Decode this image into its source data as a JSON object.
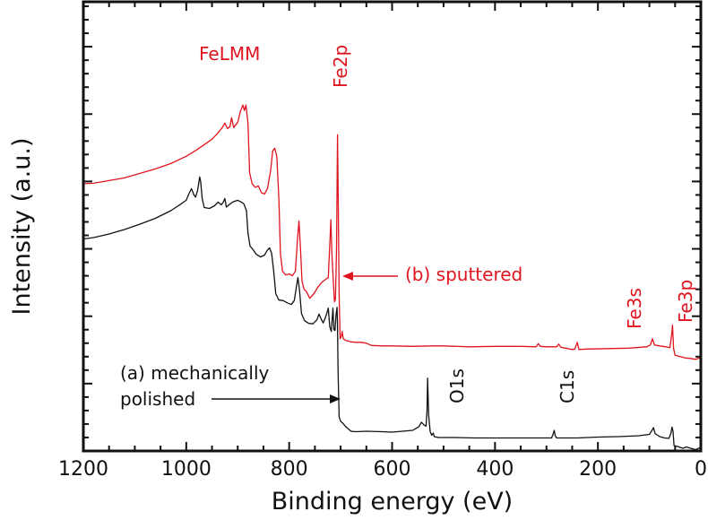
{
  "chart_data": {
    "type": "line",
    "title": "",
    "xlabel": "Binding energy (eV)",
    "ylabel": "Intensity (a.u.)",
    "xlim": [
      1200,
      0
    ],
    "x_reversed": true,
    "ylim": [
      0,
      100
    ],
    "x_major_ticks": [
      1200,
      1000,
      800,
      600,
      400,
      200,
      0
    ],
    "x_tick_labels": [
      "1200",
      "1000",
      "800",
      "600",
      "400",
      "200",
      "0"
    ],
    "x_minor_step": 50,
    "y_minor_step": 3,
    "y_major_every": 5,
    "y_tick_labels_shown": false,
    "grid": false,
    "colors": {
      "sputtered": "#e0141e",
      "polished": "#111111",
      "axis": "#111111"
    },
    "series": [
      {
        "name": "(b) sputtered",
        "color": "#e0141e",
        "points": [
          [
            1200,
            59.5
          ],
          [
            1180,
            59.6
          ],
          [
            1150,
            60.2
          ],
          [
            1120,
            60.8
          ],
          [
            1090,
            61.8
          ],
          [
            1060,
            62.8
          ],
          [
            1030,
            64.0
          ],
          [
            1000,
            65.6
          ],
          [
            980,
            67.0
          ],
          [
            960,
            68.6
          ],
          [
            950,
            69.4
          ],
          [
            940,
            70.6
          ],
          [
            930,
            72.0
          ],
          [
            925,
            73.0
          ],
          [
            920,
            71.8
          ],
          [
            915,
            72.2
          ],
          [
            912,
            74.2
          ],
          [
            908,
            72.0
          ],
          [
            900,
            73.2
          ],
          [
            895,
            75.5
          ],
          [
            890,
            77.0
          ],
          [
            887,
            75.8
          ],
          [
            884,
            77.0
          ],
          [
            880,
            73.0
          ],
          [
            877,
            62.0
          ],
          [
            872,
            59.5
          ],
          [
            866,
            58.7
          ],
          [
            860,
            59.0
          ],
          [
            854,
            57.5
          ],
          [
            848,
            57.2
          ],
          [
            842,
            58.5
          ],
          [
            836,
            62.5
          ],
          [
            832,
            66.8
          ],
          [
            828,
            67.4
          ],
          [
            824,
            65.5
          ],
          [
            820,
            56.0
          ],
          [
            817,
            44.0
          ],
          [
            813,
            40.0
          ],
          [
            807,
            39.2
          ],
          [
            800,
            39.4
          ],
          [
            794,
            39.0
          ],
          [
            788,
            40.0
          ],
          [
            784,
            47.0
          ],
          [
            781,
            51.2
          ],
          [
            778,
            45.0
          ],
          [
            775,
            37.8
          ],
          [
            771,
            36.0
          ],
          [
            766,
            35.4
          ],
          [
            760,
            34.0
          ],
          [
            752,
            35.0
          ],
          [
            744,
            36.5
          ],
          [
            736,
            37.6
          ],
          [
            728,
            38.3
          ],
          [
            724,
            38.6
          ],
          [
            721,
            46.0
          ],
          [
            719,
            51.5
          ],
          [
            717,
            44.0
          ],
          [
            714,
            37.5
          ],
          [
            712,
            33.2
          ],
          [
            710,
            33.8
          ],
          [
            708,
            45.0
          ],
          [
            706,
            70.4
          ],
          [
            705,
            60.0
          ],
          [
            703,
            35.0
          ],
          [
            701,
            25.0
          ],
          [
            699,
            25.4
          ],
          [
            697,
            26.6
          ],
          [
            695,
            25.0
          ],
          [
            690,
            24.6
          ],
          [
            680,
            24.3
          ],
          [
            670,
            24.2
          ],
          [
            660,
            24.2
          ],
          [
            650,
            24.0
          ],
          [
            640,
            23.5
          ],
          [
            620,
            23.4
          ],
          [
            600,
            23.4
          ],
          [
            560,
            23.3
          ],
          [
            520,
            23.4
          ],
          [
            500,
            23.4
          ],
          [
            450,
            23.2
          ],
          [
            400,
            23.3
          ],
          [
            350,
            23.3
          ],
          [
            320,
            23.2
          ],
          [
            316,
            23.9
          ],
          [
            312,
            23.3
          ],
          [
            300,
            23.2
          ],
          [
            280,
            23.2
          ],
          [
            276,
            23.8
          ],
          [
            272,
            23.1
          ],
          [
            250,
            22.6
          ],
          [
            245,
            22.7
          ],
          [
            240,
            24.2
          ],
          [
            237,
            22.6
          ],
          [
            220,
            22.7
          ],
          [
            180,
            22.8
          ],
          [
            140,
            22.9
          ],
          [
            105,
            23.2
          ],
          [
            98,
            23.6
          ],
          [
            94,
            25.0
          ],
          [
            90,
            23.6
          ],
          [
            80,
            23.4
          ],
          [
            68,
            23.2
          ],
          [
            60,
            23.0
          ],
          [
            56,
            26.5
          ],
          [
            55,
            28.0
          ],
          [
            53,
            22.8
          ],
          [
            50,
            21.3
          ],
          [
            40,
            21.0
          ],
          [
            30,
            20.7
          ],
          [
            20,
            20.6
          ],
          [
            10,
            20.4
          ],
          [
            0,
            20.8
          ]
        ]
      },
      {
        "name": "(a) mechanically polished",
        "color": "#111111",
        "points": [
          [
            1200,
            47.2
          ],
          [
            1180,
            47.5
          ],
          [
            1150,
            48.3
          ],
          [
            1120,
            49.3
          ],
          [
            1090,
            50.5
          ],
          [
            1060,
            51.8
          ],
          [
            1030,
            53.5
          ],
          [
            1010,
            55.0
          ],
          [
            1000,
            55.8
          ],
          [
            995,
            57.2
          ],
          [
            990,
            58.4
          ],
          [
            985,
            57.0
          ],
          [
            982,
            56.5
          ],
          [
            978,
            58.0
          ],
          [
            974,
            61.0
          ],
          [
            972,
            60.0
          ],
          [
            969,
            56.2
          ],
          [
            965,
            54.2
          ],
          [
            955,
            54.0
          ],
          [
            945,
            54.6
          ],
          [
            938,
            55.4
          ],
          [
            932,
            54.8
          ],
          [
            928,
            55.4
          ],
          [
            925,
            56.2
          ],
          [
            922,
            54.3
          ],
          [
            918,
            54.7
          ],
          [
            910,
            55.4
          ],
          [
            900,
            55.8
          ],
          [
            893,
            55.4
          ],
          [
            888,
            55.0
          ],
          [
            883,
            53.5
          ],
          [
            880,
            48.5
          ],
          [
            876,
            45.6
          ],
          [
            870,
            44.8
          ],
          [
            864,
            43.8
          ],
          [
            856,
            43.2
          ],
          [
            848,
            43.6
          ],
          [
            842,
            44.8
          ],
          [
            838,
            45.2
          ],
          [
            834,
            44.0
          ],
          [
            830,
            40.0
          ],
          [
            826,
            35.0
          ],
          [
            820,
            33.6
          ],
          [
            812,
            33.5
          ],
          [
            804,
            33.0
          ],
          [
            796,
            32.6
          ],
          [
            790,
            33.5
          ],
          [
            786,
            36.5
          ],
          [
            783,
            38.6
          ],
          [
            780,
            36.0
          ],
          [
            776,
            30.6
          ],
          [
            770,
            29.0
          ],
          [
            762,
            28.4
          ],
          [
            754,
            28.3
          ],
          [
            746,
            29.2
          ],
          [
            742,
            30.5
          ],
          [
            738,
            29.4
          ],
          [
            734,
            28.5
          ],
          [
            730,
            29.6
          ],
          [
            727,
            30.6
          ],
          [
            724,
            31.8
          ],
          [
            721,
            27.6
          ],
          [
            718,
            26.6
          ],
          [
            715,
            31.8
          ],
          [
            713,
            27.0
          ],
          [
            711,
            26.8
          ],
          [
            709,
            30.2
          ],
          [
            707,
            32.0
          ],
          [
            706,
            28.0
          ],
          [
            705,
            18.0
          ],
          [
            703,
            7.6
          ],
          [
            700,
            6.6
          ],
          [
            696,
            6.2
          ],
          [
            690,
            5.4
          ],
          [
            680,
            4.4
          ],
          [
            670,
            4.3
          ],
          [
            650,
            4.4
          ],
          [
            620,
            4.3
          ],
          [
            600,
            4.2
          ],
          [
            580,
            4.4
          ],
          [
            560,
            4.6
          ],
          [
            548,
            5.4
          ],
          [
            543,
            6.4
          ],
          [
            538,
            5.8
          ],
          [
            534,
            5.5
          ],
          [
            532,
            9.0
          ],
          [
            531,
            16.2
          ],
          [
            529,
            8.0
          ],
          [
            526,
            4.3
          ],
          [
            523,
            3.5
          ],
          [
            520,
            4.0
          ],
          [
            518,
            3.2
          ],
          [
            510,
            3.0
          ],
          [
            480,
            3.0
          ],
          [
            440,
            2.9
          ],
          [
            400,
            2.9
          ],
          [
            360,
            2.9
          ],
          [
            320,
            2.9
          ],
          [
            290,
            2.9
          ],
          [
            287,
            3.8
          ],
          [
            285,
            4.6
          ],
          [
            283,
            3.4
          ],
          [
            280,
            2.9
          ],
          [
            240,
            2.9
          ],
          [
            200,
            3.1
          ],
          [
            160,
            3.2
          ],
          [
            120,
            3.4
          ],
          [
            100,
            3.7
          ],
          [
            95,
            4.6
          ],
          [
            92,
            5.2
          ],
          [
            89,
            3.9
          ],
          [
            80,
            3.2
          ],
          [
            70,
            2.9
          ],
          [
            62,
            2.8
          ],
          [
            58,
            4.0
          ],
          [
            56,
            5.3
          ],
          [
            54,
            4.4
          ],
          [
            52,
            1.2
          ],
          [
            45,
            1.0
          ],
          [
            35,
            0.6
          ],
          [
            28,
            0.9
          ],
          [
            20,
            0.6
          ],
          [
            10,
            0.3
          ],
          [
            0,
            0.8
          ]
        ]
      }
    ],
    "annotations": [
      {
        "text": "FeLMM",
        "color": "red",
        "at": [
          880,
          92
        ],
        "orientation": "horizontal"
      },
      {
        "text": "Fe2p",
        "color": "red",
        "at": [
          706,
          92
        ],
        "orientation": "vertical"
      },
      {
        "text": "(b) sputtered",
        "color": "red",
        "arrow_to": [
          705,
          37
        ]
      },
      {
        "text": "Fe3s",
        "color": "red",
        "at": [
          95,
          28
        ],
        "orientation": "vertical"
      },
      {
        "text": "Fe3p",
        "color": "red",
        "at": [
          45,
          28
        ],
        "orientation": "vertical"
      },
      {
        "text": "(a) mechanically",
        "color": "black"
      },
      {
        "text": "polished",
        "color": "black",
        "arrow_to": [
          705,
          7
        ]
      },
      {
        "text": "O1s",
        "color": "black",
        "at": [
          505,
          17
        ],
        "orientation": "vertical"
      },
      {
        "text": "C1s",
        "color": "black",
        "at": [
          288,
          17
        ],
        "orientation": "vertical"
      }
    ]
  }
}
